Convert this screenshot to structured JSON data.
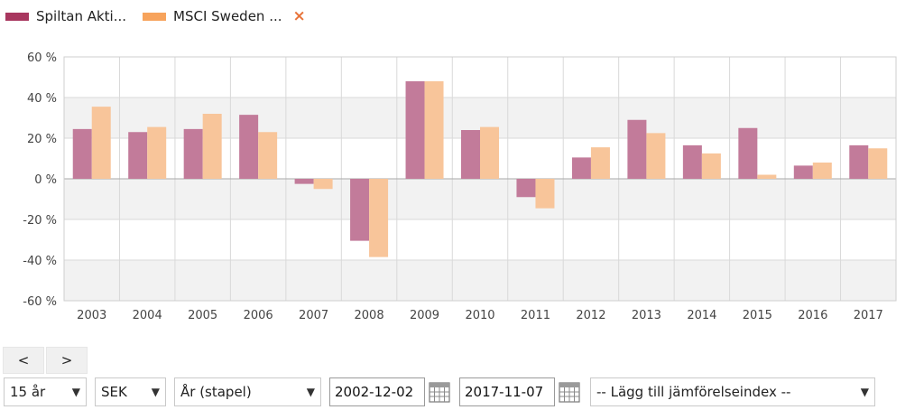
{
  "legend": {
    "items": [
      {
        "label": "Spiltan Akti...",
        "color": "#a8375f"
      },
      {
        "label": "MSCI Sweden ...",
        "color": "#f7a35c"
      }
    ],
    "remove_icon": "×"
  },
  "chart_data": {
    "type": "bar",
    "categories": [
      "2003",
      "2004",
      "2005",
      "2006",
      "2007",
      "2008",
      "2009",
      "2010",
      "2011",
      "2012",
      "2013",
      "2014",
      "2015",
      "2016",
      "2017"
    ],
    "series": [
      {
        "name": "Spiltan Akti...",
        "color": "#c27b9a",
        "values": [
          24.5,
          23,
          24.5,
          31.5,
          -2.5,
          -30.5,
          48,
          24,
          -9,
          10.5,
          29,
          16.5,
          25,
          6.5,
          16.5
        ]
      },
      {
        "name": "MSCI Sweden ...",
        "color": "#f8c59a",
        "values": [
          35.5,
          25.5,
          32,
          23,
          -5,
          -38.5,
          48,
          25.5,
          -14.5,
          15.5,
          22.5,
          12.5,
          2,
          8,
          15
        ]
      }
    ],
    "ylim": [
      -60,
      60
    ],
    "yticks": [
      60,
      40,
      20,
      0,
      -20,
      -40,
      -60
    ],
    "ytick_labels": [
      "60 %",
      "40 %",
      "20 %",
      "0 %",
      "-20 %",
      "-40 %",
      "-60 %"
    ],
    "grid": true,
    "alternating_bands": true,
    "legend_position": "top-left"
  },
  "controls": {
    "prev_label": "<",
    "next_label": ">",
    "period": "15 år",
    "currency": "SEK",
    "chart_mode": "År (stapel)",
    "start_date": "2002-12-02",
    "end_date": "2017-11-07",
    "compare_index": "-- Lägg till jämförelseindex --",
    "dropdown_arrow": "▼"
  }
}
